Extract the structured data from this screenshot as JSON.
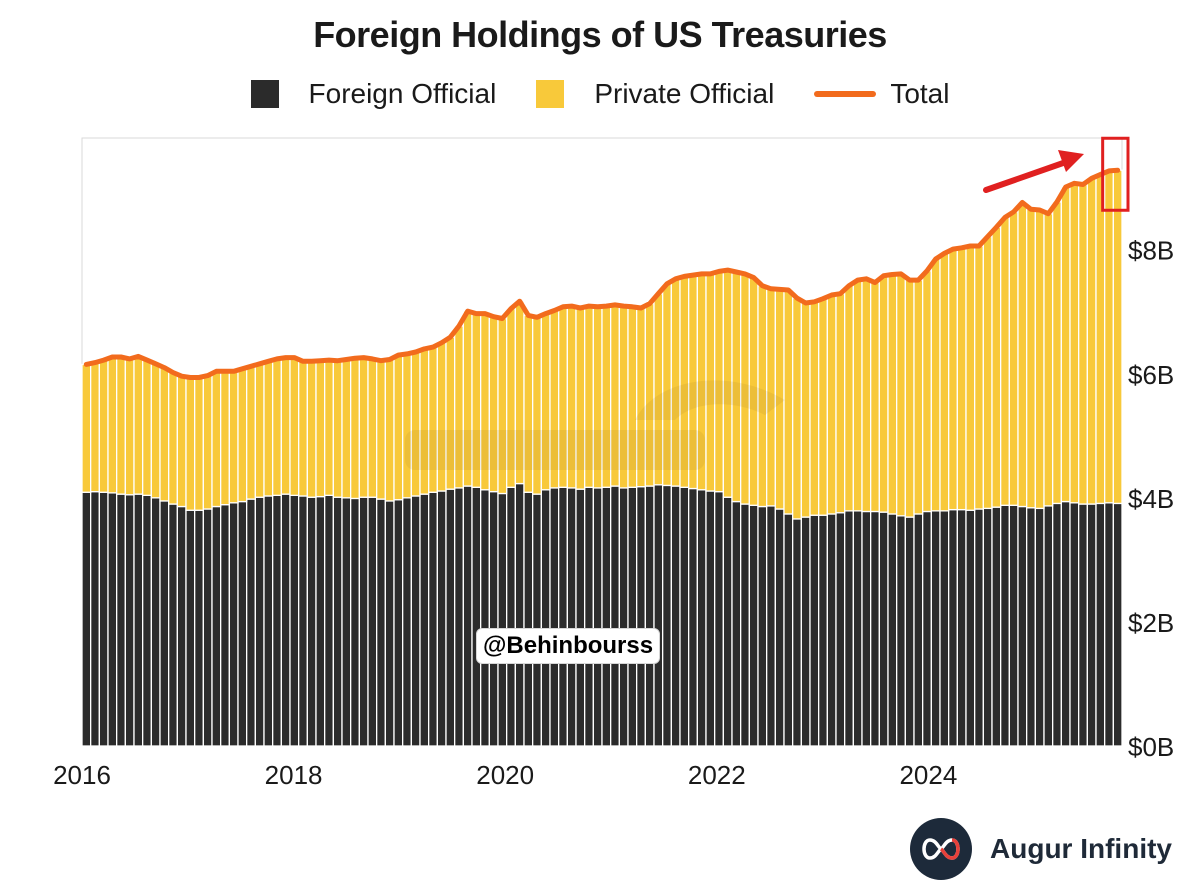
{
  "chart_data": {
    "type": "bar",
    "stacked": true,
    "title": "Foreign Holdings of US Treasuries",
    "ylim": [
      0,
      9.8
    ],
    "yticks": [
      0,
      2,
      4,
      6,
      8
    ],
    "ytick_labels": [
      "$0B",
      "$2B",
      "$4B",
      "$6B",
      "$8B"
    ],
    "xtick_labels": [
      "2016",
      "2018",
      "2020",
      "2022",
      "2024"
    ],
    "xtick_years": [
      2016,
      2018,
      2020,
      2022,
      2024
    ],
    "x_start": 2016.0,
    "x_end": 2025.83,
    "series": [
      {
        "name": "Foreign Official",
        "color": "#2b2b2b",
        "values": [
          4.09,
          4.1,
          4.09,
          4.08,
          4.06,
          4.05,
          4.06,
          4.04,
          4.0,
          3.95,
          3.9,
          3.86,
          3.8,
          3.8,
          3.82,
          3.86,
          3.89,
          3.92,
          3.94,
          3.98,
          4.01,
          4.03,
          4.04,
          4.06,
          4.04,
          4.03,
          4.01,
          4.02,
          4.04,
          4.01,
          4.0,
          3.99,
          4.01,
          4.01,
          3.98,
          3.95,
          3.97,
          4.0,
          4.03,
          4.06,
          4.09,
          4.11,
          4.14,
          4.16,
          4.19,
          4.17,
          4.13,
          4.1,
          4.07,
          4.17,
          4.23,
          4.09,
          4.06,
          4.13,
          4.16,
          4.17,
          4.16,
          4.14,
          4.17,
          4.16,
          4.17,
          4.19,
          4.16,
          4.17,
          4.18,
          4.19,
          4.21,
          4.2,
          4.19,
          4.17,
          4.15,
          4.13,
          4.11,
          4.1,
          4.01,
          3.94,
          3.9,
          3.88,
          3.86,
          3.87,
          3.82,
          3.74,
          3.66,
          3.69,
          3.72,
          3.72,
          3.74,
          3.76,
          3.79,
          3.79,
          3.78,
          3.78,
          3.77,
          3.74,
          3.71,
          3.69,
          3.74,
          3.78,
          3.79,
          3.79,
          3.81,
          3.81,
          3.8,
          3.82,
          3.83,
          3.85,
          3.88,
          3.88,
          3.86,
          3.84,
          3.83,
          3.87,
          3.91,
          3.94,
          3.92,
          3.9,
          3.9,
          3.91,
          3.92,
          3.91
        ]
      },
      {
        "name": "Private Official",
        "color": "#f8c93a",
        "values": [
          2.06,
          2.08,
          2.13,
          2.19,
          2.21,
          2.19,
          2.22,
          2.18,
          2.16,
          2.15,
          2.12,
          2.1,
          2.14,
          2.14,
          2.15,
          2.18,
          2.15,
          2.12,
          2.14,
          2.14,
          2.15,
          2.17,
          2.2,
          2.2,
          2.22,
          2.17,
          2.19,
          2.19,
          2.18,
          2.2,
          2.23,
          2.26,
          2.25,
          2.23,
          2.23,
          2.28,
          2.33,
          2.32,
          2.32,
          2.34,
          2.34,
          2.39,
          2.45,
          2.61,
          2.82,
          2.8,
          2.84,
          2.82,
          2.82,
          2.88,
          2.94,
          2.85,
          2.85,
          2.84,
          2.86,
          2.91,
          2.93,
          2.92,
          2.92,
          2.92,
          2.92,
          2.92,
          2.93,
          2.91,
          2.88,
          2.94,
          3.08,
          3.25,
          3.34,
          3.4,
          3.44,
          3.48,
          3.5,
          3.55,
          3.66,
          3.7,
          3.71,
          3.67,
          3.56,
          3.5,
          3.54,
          3.61,
          3.56,
          3.45,
          3.44,
          3.49,
          3.53,
          3.53,
          3.63,
          3.72,
          3.75,
          3.69,
          3.81,
          3.86,
          3.9,
          3.82,
          3.77,
          3.88,
          4.06,
          4.15,
          4.2,
          4.22,
          4.26,
          4.24,
          4.38,
          4.51,
          4.64,
          4.73,
          4.9,
          4.81,
          4.81,
          4.71,
          4.86,
          5.07,
          5.15,
          5.15,
          5.25,
          5.3,
          5.35,
          5.37
        ]
      }
    ],
    "total": {
      "name": "Total",
      "color": "#f26b1d"
    }
  },
  "legend": {
    "foreign_official": "Foreign Official",
    "private_official": "Private Official",
    "total": "Total"
  },
  "annotation": {
    "arrow_color": "#e02020",
    "highlight_color": "#e02020"
  },
  "overlay_text": {
    "handle": "@Behinbourss"
  },
  "brand": {
    "name": "Augur Infinity"
  }
}
